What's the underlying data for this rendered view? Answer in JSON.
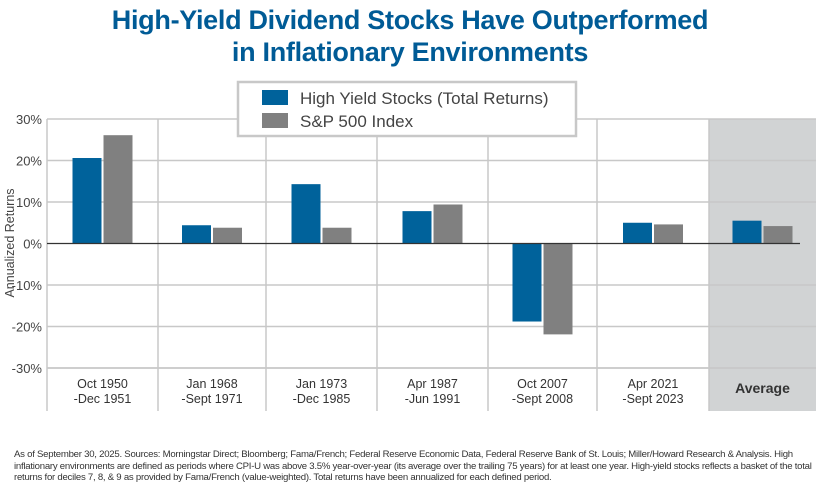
{
  "chart_data": {
    "type": "bar",
    "title": "High-Yield Dividend Stocks Have Outperformed in Inflationary Environments",
    "title_lines": [
      "High-Yield Dividend Stocks Have Outperformed",
      "in Inflationary Environments"
    ],
    "ylabel": "Annualized Returns",
    "xlabel": "",
    "ylim": [
      -30,
      30
    ],
    "yticks": [
      "30%",
      "20%",
      "10%",
      "0%",
      "-10%",
      "-20%",
      "-30%"
    ],
    "ytick_values": [
      30,
      20,
      10,
      0,
      -10,
      -20,
      -30
    ],
    "grid": true,
    "legend_position": "top-center",
    "categories": [
      [
        "Oct 1950",
        "-Dec 1951"
      ],
      [
        "Jan 1968",
        "-Sept 1971"
      ],
      [
        "Jan 1973",
        "-Dec 1985"
      ],
      [
        "Apr 1987",
        "-Jun 1991"
      ],
      [
        "Oct 2007",
        "-Sept 2008"
      ],
      [
        "Apr 2021",
        "-Sept 2023"
      ],
      [
        "Average",
        ""
      ]
    ],
    "highlighted_category": "Average",
    "series": [
      {
        "name": "High Yield Stocks (Total Returns)",
        "color": "#00629b",
        "values": [
          20.6,
          4.4,
          14.3,
          7.8,
          -18.8,
          5.0,
          5.5
        ]
      },
      {
        "name": "S&P 500 Index",
        "color": "#808080",
        "values": [
          26.1,
          3.8,
          3.8,
          9.4,
          -21.9,
          4.6,
          4.2
        ]
      }
    ]
  },
  "footnote": "As of September 30, 2025. Sources: Morningstar Direct; Bloomberg; Fama/French; Federal Reserve Economic Data, Federal Reserve Bank of St. Louis; Miller/Howard Research & Analysis. High inflationary environments are defined as periods where CPI-U was above 3.5% year-over-year (its average over the trailing 75 years) for at least one year. High-yield stocks reflects a basket of the total returns for deciles 7, 8, & 9 as provided by Fama/French (value-weighted). Total returns have been annualized for each defined period.",
  "colors": {
    "title": "#005b96",
    "highlight_bg": "#d1d3d4",
    "grid": "#c8c8c8"
  }
}
